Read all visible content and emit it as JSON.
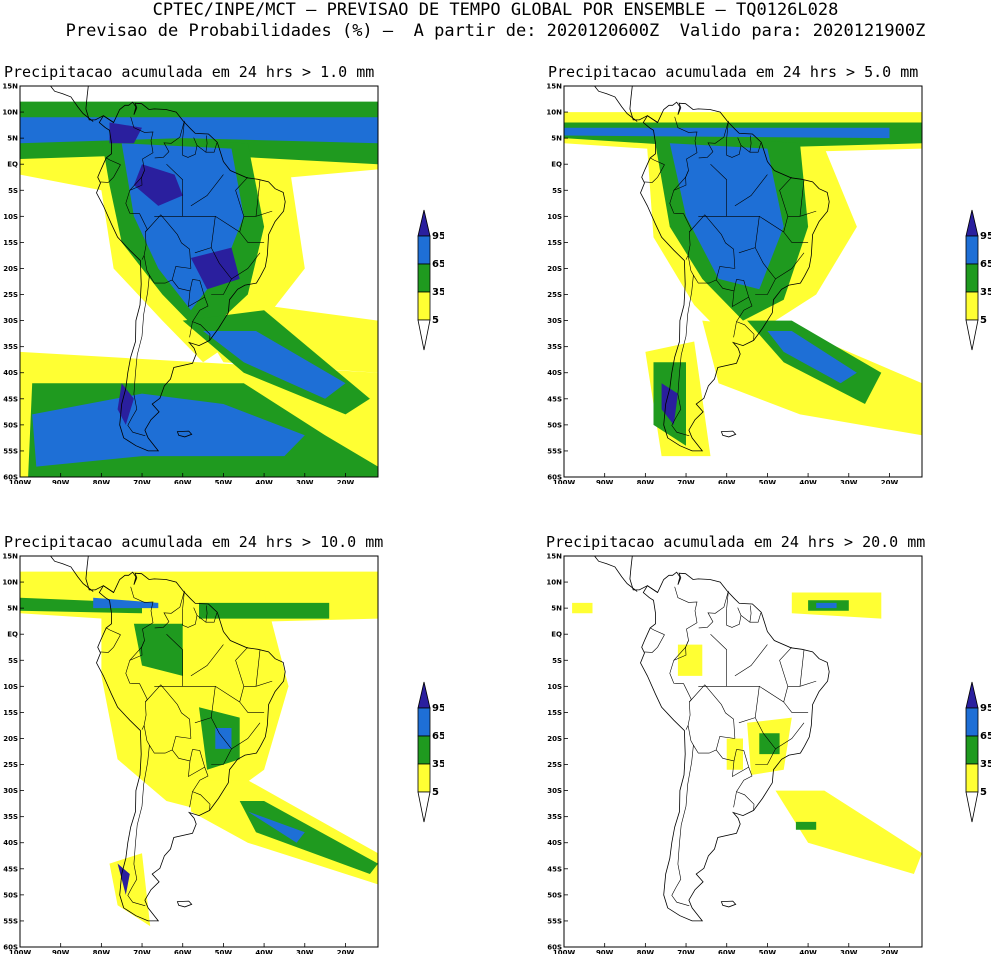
{
  "header": {
    "line1": "CPTEC/INPE/MCT – PREVISAO DE TEMPO GLOBAL POR ENSEMBLE – TQ0126L028",
    "line2": "Previsao de Probabilidades (%) –  A partir de: 2020120600Z  Valido para: 2020121900Z"
  },
  "panels": [
    {
      "id": "p1",
      "title": "Precipitacao acumulada em 24 hrs > 1.0 mm",
      "level": "strong"
    },
    {
      "id": "p2",
      "title": "Precipitacao acumulada em 24 hrs > 5.0 mm",
      "level": "medium"
    },
    {
      "id": "p3",
      "title": "Precipitacao acumulada em 24 hrs > 10.0 mm",
      "level": "weak"
    },
    {
      "id": "p4",
      "title": "Precipitacao acumulada em 24 hrs > 20.0 mm",
      "level": "minimal"
    }
  ],
  "axes": {
    "lat_labels": [
      "15N",
      "10N",
      "5N",
      "EQ",
      "5S",
      "10S",
      "15S",
      "20S",
      "25S",
      "30S",
      "35S",
      "40S",
      "45S",
      "50S",
      "55S",
      "60S"
    ],
    "lon_labels": [
      "100W",
      "90W",
      "80W",
      "70W",
      "60W",
      "50W",
      "40W",
      "30W",
      "20W"
    ]
  },
  "colorbar": {
    "labels": [
      "95",
      "65",
      "35",
      "5"
    ],
    "colors": {
      "very_high": "#2a1f9e",
      "high": "#1e6fd6",
      "mid": "#1f9a1f",
      "low": "#ffff33",
      "none": "#ffffff"
    }
  }
}
